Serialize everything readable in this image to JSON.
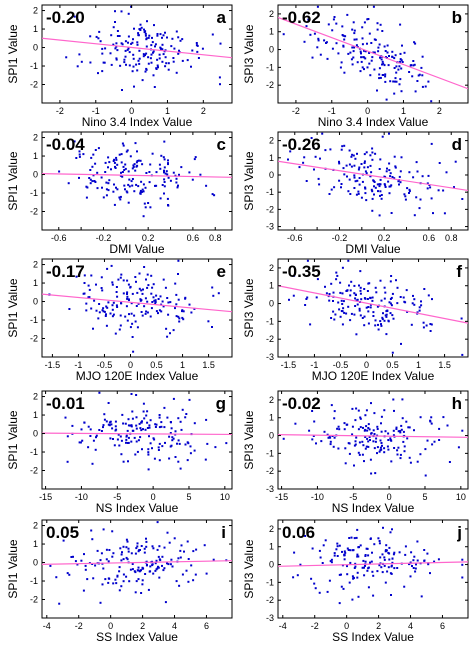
{
  "colors": {
    "points": "#0000cc",
    "fit_line": "#ff66cc",
    "axes": "#000000"
  },
  "chart_data": [
    {
      "panel": "a",
      "type": "scatter",
      "correlation_label": "-0.20",
      "xlabel": "Nino 3.4 Index Value",
      "ylabel": "SPI1 Value",
      "xlim": [
        -2.5,
        2.8
      ],
      "ylim": [
        -3,
        2.3
      ],
      "xticks": [
        -2,
        -1,
        0,
        1,
        2
      ],
      "xtick_labels": [
        "-2",
        "-1",
        "0",
        "1",
        "2"
      ],
      "yticks": [
        -2,
        -1,
        0,
        1,
        2
      ],
      "ytick_labels": [
        "-2",
        "-1",
        "0",
        "1",
        "2"
      ],
      "fit": {
        "x": [
          -2.5,
          2.8
        ],
        "y": [
          0.5,
          -0.55
        ]
      },
      "n_points": 170
    },
    {
      "panel": "b",
      "type": "scatter",
      "correlation_label": "-0.62",
      "xlabel": "Nino 3.4 Index Value",
      "ylabel": "SPI3 Value",
      "xlim": [
        -2.5,
        2.8
      ],
      "ylim": [
        -3,
        2.5
      ],
      "xticks": [
        -2,
        -1,
        0,
        1,
        2
      ],
      "xtick_labels": [
        "-2",
        "-1",
        "0",
        "1",
        "2"
      ],
      "yticks": [
        -2,
        -1,
        0,
        1,
        2
      ],
      "ytick_labels": [
        "-2",
        "-1",
        "0",
        "1",
        "2"
      ],
      "fit": {
        "x": [
          -2.5,
          2.8
        ],
        "y": [
          1.8,
          -2.2
        ]
      },
      "n_points": 170
    },
    {
      "panel": "c",
      "type": "scatter",
      "correlation_label": "-0.04",
      "xlabel": "DMI Value",
      "ylabel": "SPI1 Value",
      "xlim": [
        -0.75,
        0.95
      ],
      "ylim": [
        -3,
        2.3
      ],
      "xticks": [
        -0.6,
        -0.4,
        -0.2,
        0,
        0.2,
        0.4,
        0.6,
        0.8
      ],
      "xtick_labels": [
        "-0.6",
        "",
        "-0.2",
        "",
        "0.2",
        "",
        "0.6",
        "0.8"
      ],
      "yticks": [
        -2,
        -1,
        0,
        1,
        2
      ],
      "ytick_labels": [
        "-2",
        "-1",
        "0",
        "1",
        "2"
      ],
      "fit": {
        "x": [
          -0.75,
          0.95
        ],
        "y": [
          0.05,
          -0.15
        ]
      },
      "n_points": 170
    },
    {
      "panel": "d",
      "type": "scatter",
      "correlation_label": "-0.26",
      "xlabel": "DMI Value",
      "ylabel": "SPI3 Value",
      "xlim": [
        -0.75,
        0.95
      ],
      "ylim": [
        -3.2,
        2.5
      ],
      "xticks": [
        -0.6,
        -0.4,
        -0.2,
        0,
        0.2,
        0.4,
        0.6,
        0.8
      ],
      "xtick_labels": [
        "-0.6",
        "",
        "-0.2",
        "",
        "0.2",
        "",
        "0.6",
        "0.8"
      ],
      "yticks": [
        -3,
        -2,
        -1,
        0,
        1,
        2
      ],
      "ytick_labels": [
        "-3",
        "-2",
        "-1",
        "0",
        "1",
        "2"
      ],
      "fit": {
        "x": [
          -0.75,
          0.95
        ],
        "y": [
          0.8,
          -0.9
        ]
      },
      "n_points": 170
    },
    {
      "panel": "e",
      "type": "scatter",
      "correlation_label": "-0.17",
      "xlabel": "MJO 120E Index Value",
      "ylabel": "SPI1 Value",
      "xlim": [
        -1.7,
        1.95
      ],
      "ylim": [
        -3,
        2.3
      ],
      "xticks": [
        -1.5,
        -1,
        -0.5,
        0,
        0.5,
        1,
        1.5
      ],
      "xtick_labels": [
        "-1.5",
        "-1",
        "-0.5",
        "0",
        "0.5",
        "1",
        "1.5"
      ],
      "yticks": [
        -2,
        -1,
        0,
        1,
        2
      ],
      "ytick_labels": [
        "-2",
        "-1",
        "0",
        "1",
        "2"
      ],
      "fit": {
        "x": [
          -1.7,
          1.95
        ],
        "y": [
          0.4,
          -0.55
        ]
      },
      "n_points": 170
    },
    {
      "panel": "f",
      "type": "scatter",
      "correlation_label": "-0.35",
      "xlabel": "MJO 120E Index Value",
      "ylabel": "SPI3 Value",
      "xlim": [
        -1.7,
        1.95
      ],
      "ylim": [
        -3,
        2.5
      ],
      "xticks": [
        -1.5,
        -1,
        -0.5,
        0,
        0.5,
        1,
        1.5
      ],
      "xtick_labels": [
        "-1.5",
        "-1",
        "-0.5",
        "0",
        "0.5",
        "1",
        "1.5"
      ],
      "yticks": [
        -3,
        -2,
        -1,
        0,
        1,
        2
      ],
      "ytick_labels": [
        "-3",
        "-2",
        "-1",
        "0",
        "1",
        "2"
      ],
      "fit": {
        "x": [
          -1.7,
          1.95
        ],
        "y": [
          1.0,
          -1.1
        ]
      },
      "n_points": 170
    },
    {
      "panel": "g",
      "type": "scatter",
      "correlation_label": "-0.01",
      "xlabel": "NS Index Value",
      "ylabel": "SPI1 Value",
      "xlim": [
        -15.5,
        11
      ],
      "ylim": [
        -3,
        2.3
      ],
      "xticks": [
        -15,
        -10,
        -5,
        0,
        5,
        10
      ],
      "xtick_labels": [
        "-15",
        "-10",
        "-5",
        "0",
        "5",
        "10"
      ],
      "yticks": [
        -2,
        -1,
        0,
        1,
        2
      ],
      "ytick_labels": [
        "-2",
        "-1",
        "0",
        "1",
        "2"
      ],
      "fit": {
        "x": [
          -15.5,
          11
        ],
        "y": [
          0.02,
          -0.05
        ]
      },
      "n_points": 170
    },
    {
      "panel": "h",
      "type": "scatter",
      "correlation_label": "-0.02",
      "xlabel": "NS Index Value",
      "ylabel": "SPI3 Value",
      "xlim": [
        -15.5,
        11
      ],
      "ylim": [
        -3,
        2.5
      ],
      "xticks": [
        -15,
        -10,
        -5,
        0,
        5,
        10
      ],
      "xtick_labels": [
        "-15",
        "-10",
        "-5",
        "0",
        "5",
        "10"
      ],
      "yticks": [
        -3,
        -2,
        -1,
        0,
        1,
        2
      ],
      "ytick_labels": [
        "-3",
        "-2",
        "-1",
        "0",
        "1",
        "2"
      ],
      "fit": {
        "x": [
          -15.5,
          11
        ],
        "y": [
          0.05,
          -0.1
        ]
      },
      "n_points": 170
    },
    {
      "panel": "i",
      "type": "scatter",
      "correlation_label": "0.05",
      "xlabel": "SS Index Value",
      "ylabel": "SPI1 Value",
      "xlim": [
        -4.3,
        7.6
      ],
      "ylim": [
        -3,
        2.3
      ],
      "xticks": [
        -4,
        -2,
        0,
        2,
        4,
        6
      ],
      "xtick_labels": [
        "-4",
        "-2",
        "0",
        "2",
        "4",
        "6"
      ],
      "yticks": [
        -2,
        -1,
        0,
        1,
        2
      ],
      "ytick_labels": [
        "-2",
        "-1",
        "0",
        "1",
        "2"
      ],
      "fit": {
        "x": [
          -4.3,
          7.6
        ],
        "y": [
          -0.1,
          0.1
        ]
      },
      "n_points": 170
    },
    {
      "panel": "j",
      "type": "scatter",
      "correlation_label": "0.06",
      "xlabel": "SS Index Value",
      "ylabel": "SPI3 Value",
      "xlim": [
        -4.3,
        7.6
      ],
      "ylim": [
        -3,
        2.5
      ],
      "xticks": [
        -4,
        -2,
        0,
        2,
        4,
        6
      ],
      "xtick_labels": [
        "-4",
        "-2",
        "0",
        "2",
        "4",
        "6"
      ],
      "yticks": [
        -3,
        -2,
        -1,
        0,
        1,
        2
      ],
      "ytick_labels": [
        "-3",
        "-2",
        "-1",
        "0",
        "1",
        "2"
      ],
      "fit": {
        "x": [
          -4.3,
          7.6
        ],
        "y": [
          -0.1,
          0.15
        ]
      },
      "n_points": 170
    }
  ]
}
